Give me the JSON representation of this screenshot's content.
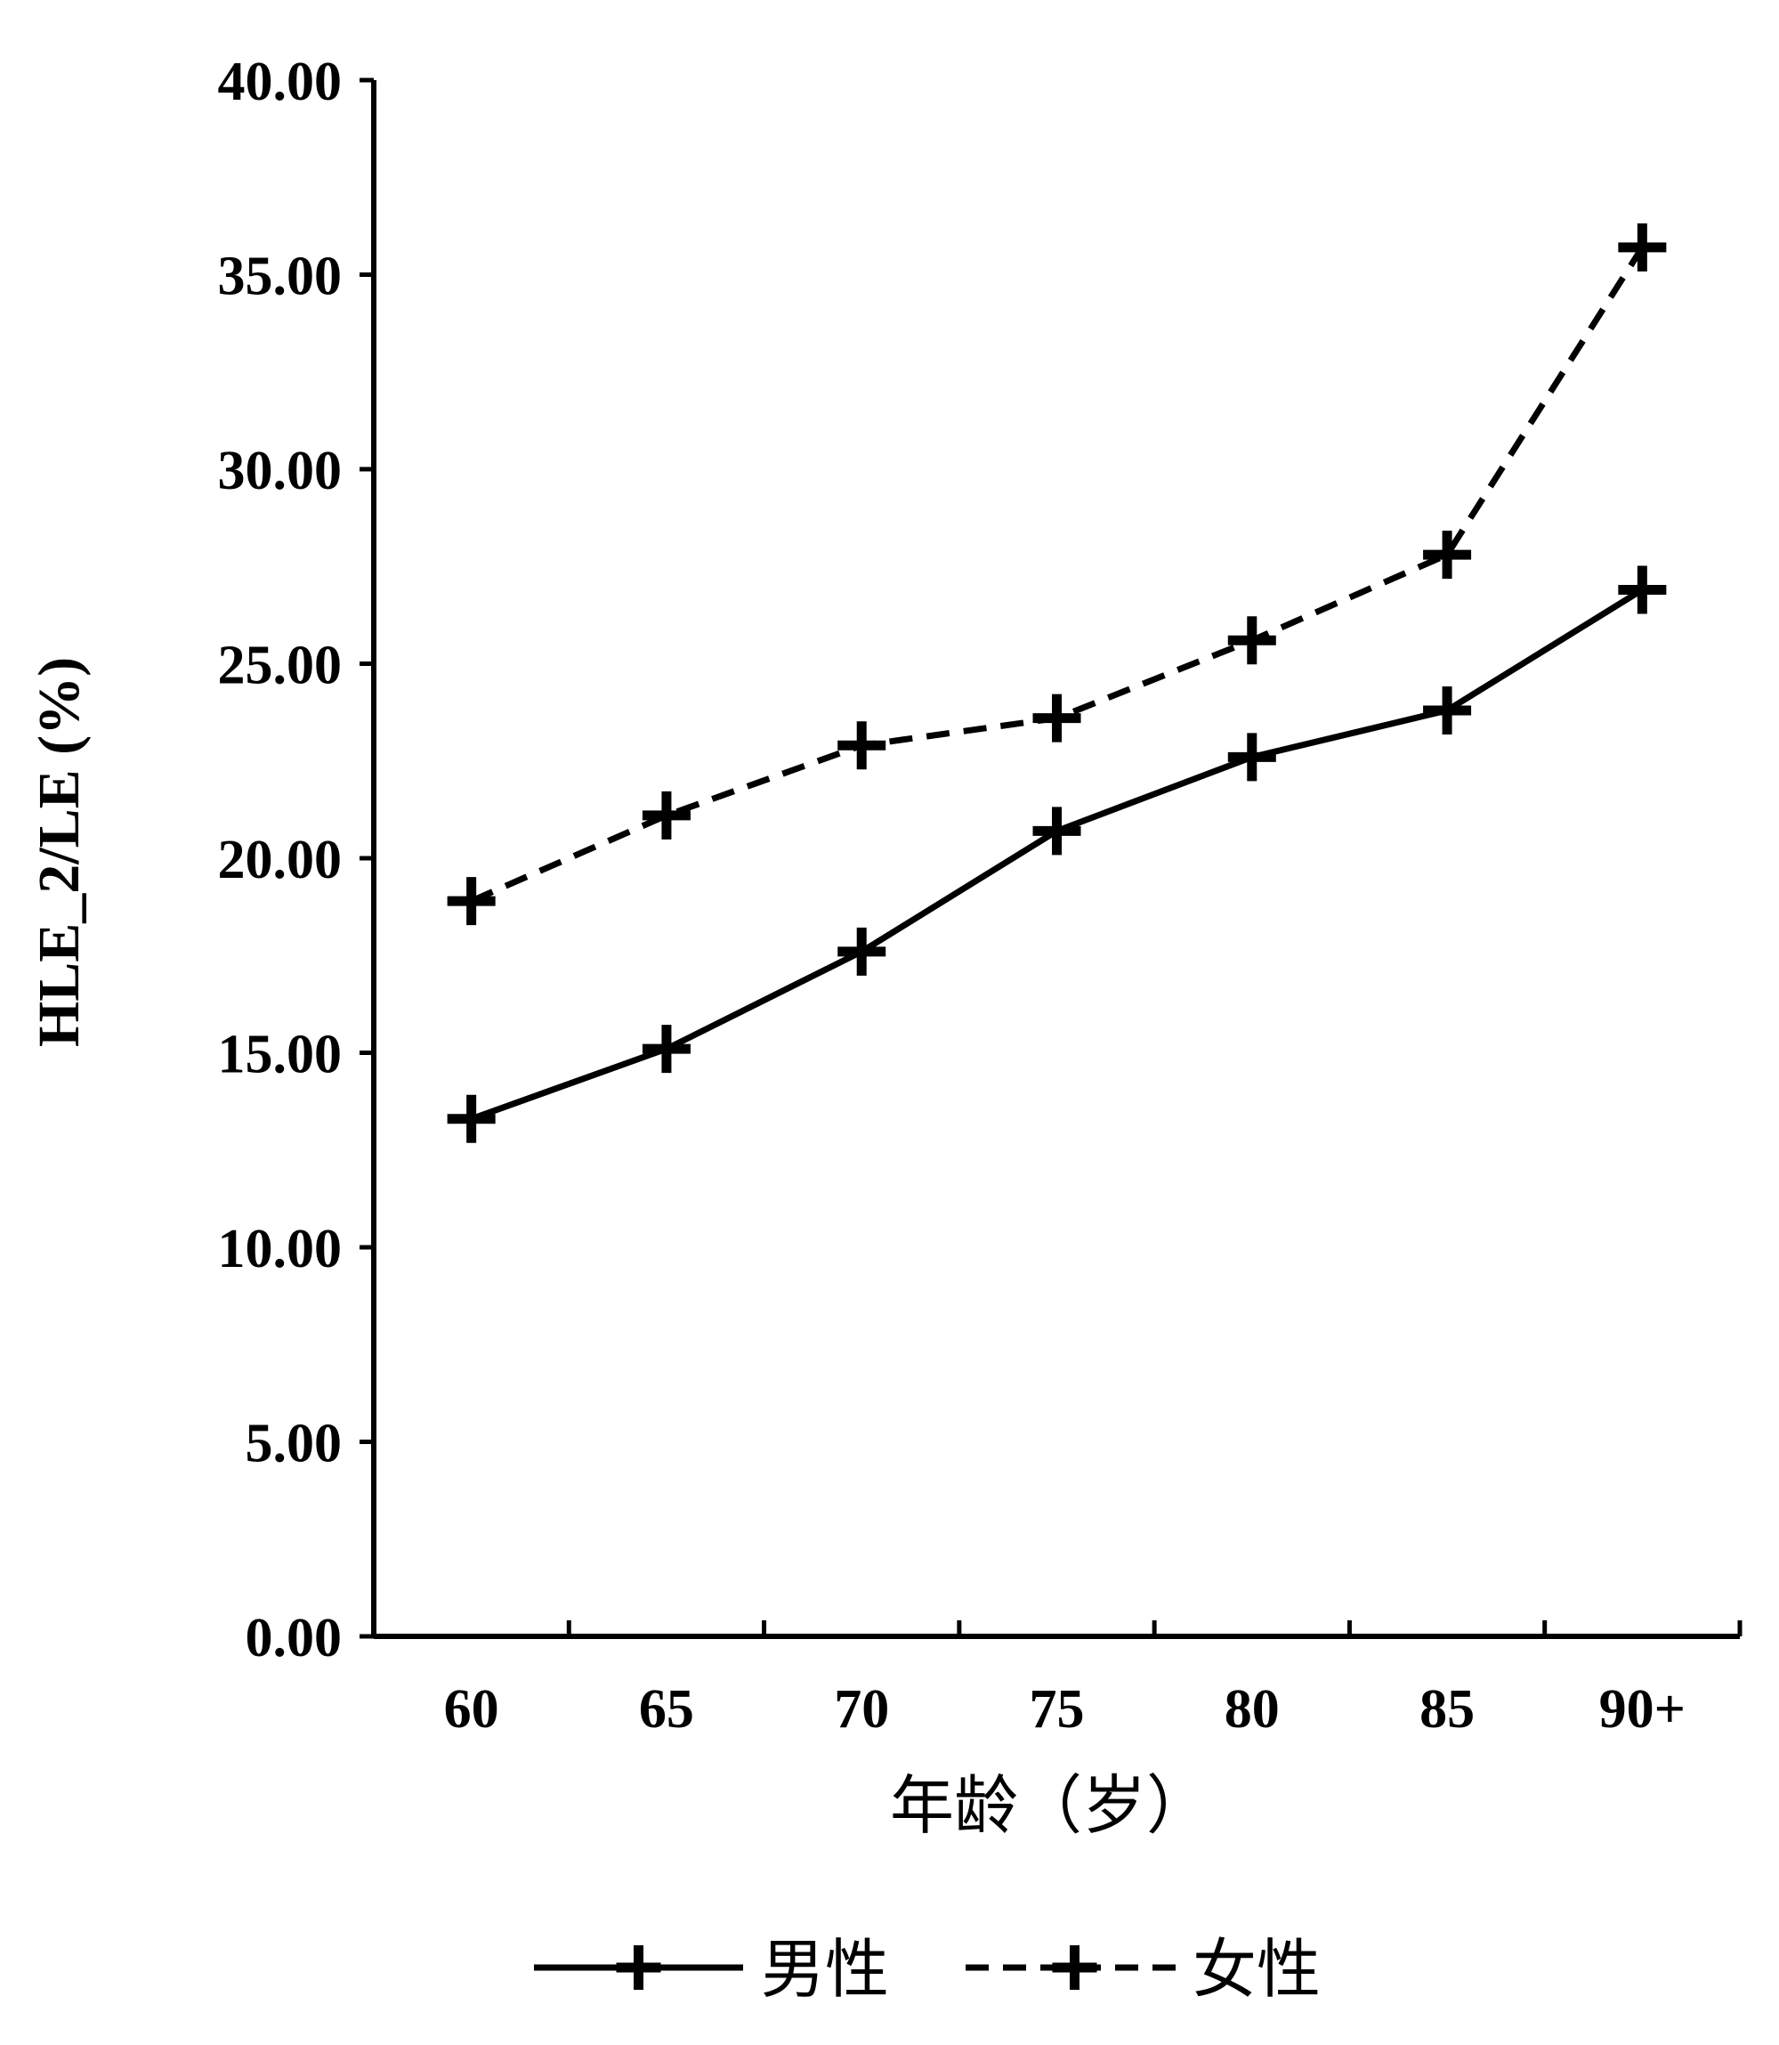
{
  "chart_data": {
    "type": "line",
    "title": "",
    "xlabel": "年龄（岁）",
    "ylabel": "HLE_2/LE (%)",
    "ylim": [
      0,
      40
    ],
    "yticks": [
      "0.00",
      "5.00",
      "10.00",
      "15.00",
      "20.00",
      "25.00",
      "30.00",
      "35.00",
      "40.00"
    ],
    "categories": [
      "60",
      "65",
      "70",
      "75",
      "80",
      "85",
      "90+"
    ],
    "grid": false,
    "legend_position": "bottom",
    "series": [
      {
        "name": "男性",
        "line_style": "solid",
        "color": "#000000",
        "values": [
          13.3,
          15.1,
          17.6,
          20.7,
          22.6,
          23.8,
          26.9
        ]
      },
      {
        "name": "女性",
        "line_style": "dashed",
        "color": "#000000",
        "values": [
          18.9,
          21.1,
          22.9,
          23.6,
          25.6,
          27.8,
          35.7
        ]
      }
    ]
  }
}
